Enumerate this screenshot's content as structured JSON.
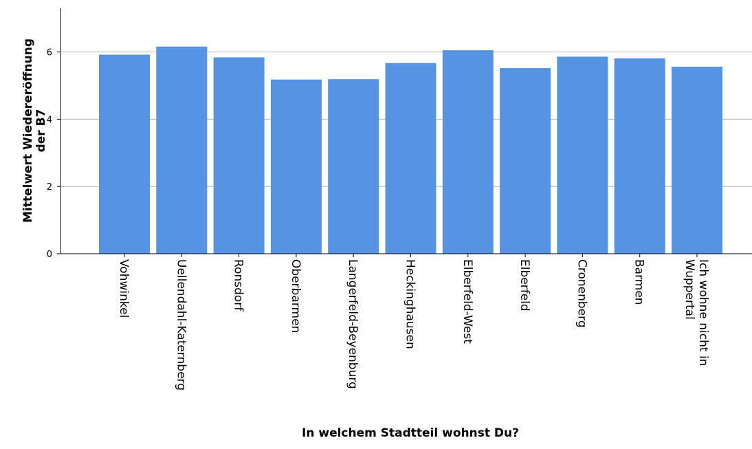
{
  "chart_data": {
    "type": "bar",
    "title": "",
    "xlabel": "In welchem Stadtteil wohnst Du?",
    "ylabel_lines": [
      "Mittelwert Wiedereröffnung",
      "der B7"
    ],
    "categories": [
      [
        "Vohwinkel"
      ],
      [
        "Uellendahl-Katernberg"
      ],
      [
        "Ronsdorf"
      ],
      [
        "Oberbarmen"
      ],
      [
        "Langerfeld-Beyenburg"
      ],
      [
        "Heckinghausen"
      ],
      [
        "Elberfeld-West"
      ],
      [
        "Elberfeld"
      ],
      [
        "Cronenberg"
      ],
      [
        "Barmen"
      ],
      [
        "Ich wohne nicht in",
        "Wuppertal"
      ]
    ],
    "values": [
      5.92,
      6.16,
      5.84,
      5.18,
      5.19,
      5.67,
      6.05,
      5.52,
      5.86,
      5.81,
      5.56
    ],
    "yticks": [
      0,
      2,
      4,
      6
    ],
    "ylim": [
      0,
      7.3
    ],
    "gridlines": true,
    "bar_color": "#5594e3",
    "grid_color": "#b4b4b4"
  }
}
